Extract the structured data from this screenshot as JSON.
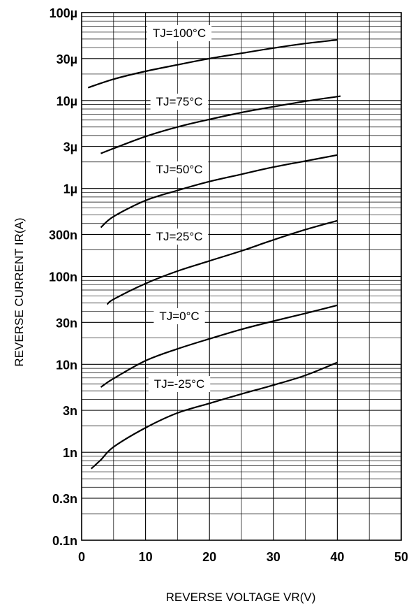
{
  "chart_data": {
    "type": "line",
    "xlabel": "REVERSE VOLTAGE VR(V)",
    "ylabel": "REVERSE CURRENT IR(A)",
    "xlim": [
      0,
      50
    ],
    "ylim": [
      1e-10,
      0.0001
    ],
    "yscale": "log",
    "grid": true,
    "x_ticks": [
      0,
      10,
      20,
      30,
      40,
      50
    ],
    "x_tick_labels": [
      "0",
      "10",
      "20",
      "30",
      "40",
      "50"
    ],
    "y_ticks": [
      1e-10,
      3e-10,
      1e-09,
      3e-09,
      1e-08,
      3e-08,
      1e-07,
      3e-07,
      1e-06,
      3e-06,
      1e-05,
      3e-05,
      0.0001
    ],
    "y_tick_labels": [
      "0.1n",
      "0.3n",
      "1n",
      "3n",
      "10n",
      "30n",
      "100n",
      "300n",
      "1µ",
      "3µ",
      "10µ",
      "30µ",
      "100µ"
    ],
    "series": [
      {
        "name": "TJ=100°C",
        "x": [
          1,
          5,
          10,
          15,
          20,
          25,
          30,
          35,
          40
        ],
        "y": [
          1.4e-05,
          1.75e-05,
          2.15e-05,
          2.55e-05,
          3e-05,
          3.45e-05,
          3.95e-05,
          4.45e-05,
          4.9e-05
        ]
      },
      {
        "name": "TJ=75°C",
        "x": [
          3,
          5,
          10,
          15,
          20,
          25,
          30,
          35,
          40.5
        ],
        "y": [
          2.5e-06,
          2.85e-06,
          3.9e-06,
          5e-06,
          6.1e-06,
          7.3e-06,
          8.5e-06,
          9.8e-06,
          1.12e-05
        ]
      },
      {
        "name": "TJ=50°C",
        "x": [
          3,
          5,
          10,
          15,
          20,
          25,
          30,
          35,
          40
        ],
        "y": [
          3.6e-07,
          4.8e-07,
          7.3e-07,
          9.5e-07,
          1.2e-06,
          1.45e-06,
          1.75e-06,
          2.05e-06,
          2.4e-06
        ]
      },
      {
        "name": "TJ=25°C",
        "x": [
          4,
          5,
          10,
          15,
          20,
          25,
          30,
          35,
          40
        ],
        "y": [
          4.8e-08,
          5.5e-08,
          8.3e-08,
          1.15e-07,
          1.5e-07,
          1.95e-07,
          2.6e-07,
          3.4e-07,
          4.3e-07
        ]
      },
      {
        "name": "TJ=0°C",
        "x": [
          3,
          5,
          10,
          15,
          20,
          25,
          30,
          35,
          40
        ],
        "y": [
          5.5e-09,
          6.9e-09,
          1.1e-08,
          1.5e-08,
          1.95e-08,
          2.5e-08,
          3.1e-08,
          3.8e-08,
          4.7e-08
        ]
      },
      {
        "name": "TJ=-25°C",
        "x": [
          1.5,
          3,
          5,
          10,
          15,
          20,
          25,
          30,
          35,
          40
        ],
        "y": [
          6.5e-10,
          8.2e-10,
          1.15e-09,
          1.9e-09,
          2.8e-09,
          3.6e-09,
          4.6e-09,
          5.8e-09,
          7.5e-09,
          1.05e-08
        ]
      }
    ]
  }
}
